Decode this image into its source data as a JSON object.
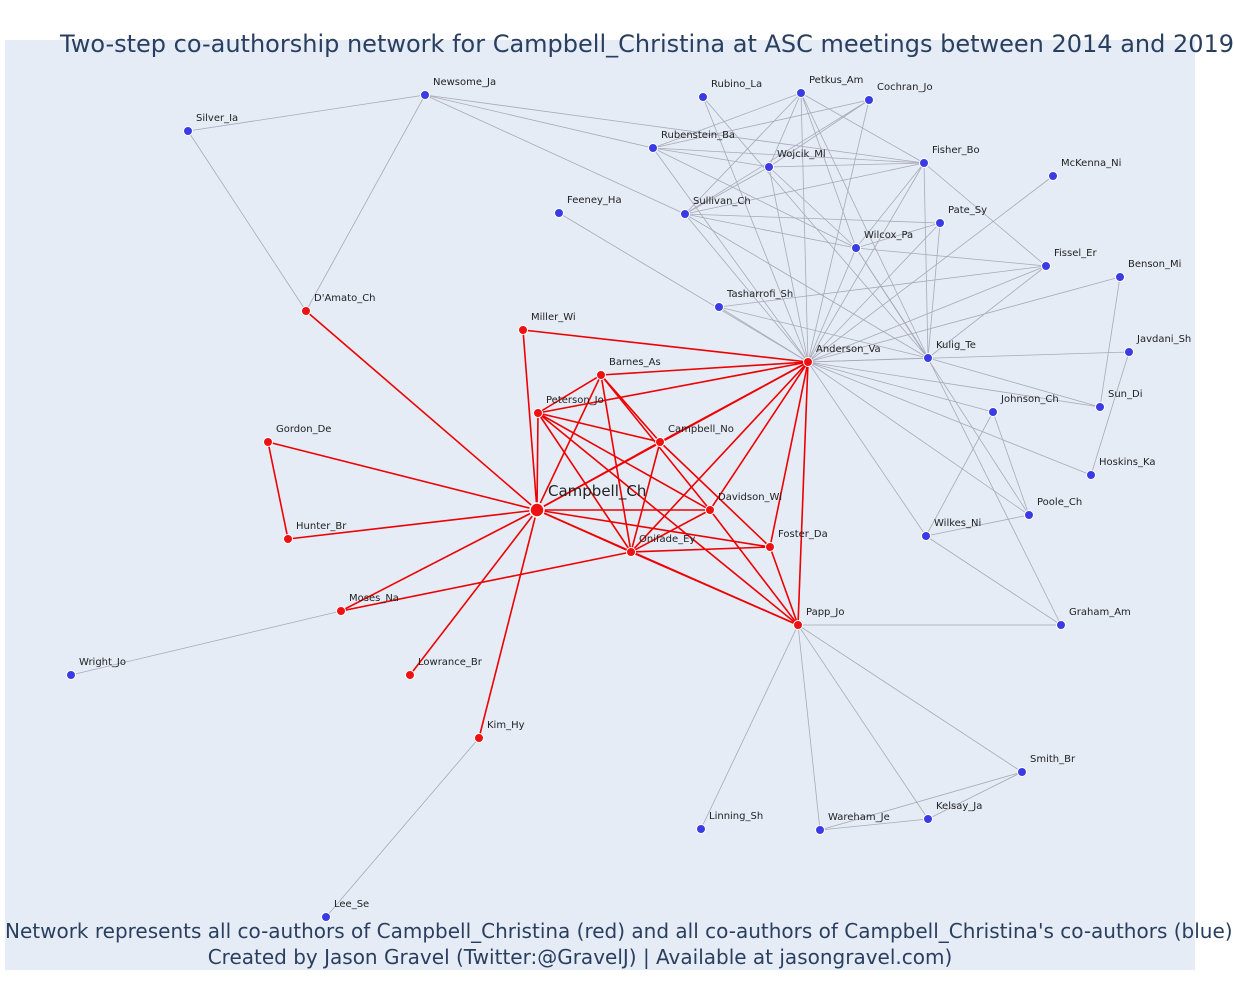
{
  "title": "Two-step co-authorship network for Campbell_Christina at ASC meetings between 2014 and 2019",
  "caption_line1": "Network represents all co-authors of Campbell_Christina (red) and all co-authors of Campbell_Christina's co-authors (blue)",
  "caption_line2": "Created by Jason Gravel (Twitter:@GravelJ) | Available at jasongravel.com)",
  "colors": {
    "background": "#e5ecf6",
    "first_step": "#ee1111",
    "second_step": "#3b3be6",
    "red_edge": "#ee0000",
    "grey_edge": "#a9a9b8"
  },
  "nodes": [
    {
      "id": "Campbell_Ch",
      "group": "focal"
    },
    {
      "id": "Peterson_Jo",
      "group": "red"
    },
    {
      "id": "Barnes_As",
      "group": "red"
    },
    {
      "id": "Campbell_No",
      "group": "red"
    },
    {
      "id": "Davidson_Wi",
      "group": "red"
    },
    {
      "id": "Onifade_Ey",
      "group": "red"
    },
    {
      "id": "Foster_Da",
      "group": "red"
    },
    {
      "id": "Papp_Jo",
      "group": "red"
    },
    {
      "id": "Anderson_Va",
      "group": "red"
    },
    {
      "id": "Miller_Wi",
      "group": "red"
    },
    {
      "id": "D'Amato_Ch",
      "group": "red"
    },
    {
      "id": "Gordon_De",
      "group": "red"
    },
    {
      "id": "Hunter_Br",
      "group": "red"
    },
    {
      "id": "Moses_Na",
      "group": "red"
    },
    {
      "id": "Lowrance_Br",
      "group": "red"
    },
    {
      "id": "Kim_Hy",
      "group": "red"
    },
    {
      "id": "Newsome_Ja",
      "group": "blue"
    },
    {
      "id": "Silver_Ia",
      "group": "blue"
    },
    {
      "id": "Rubino_La",
      "group": "blue"
    },
    {
      "id": "Petkus_Am",
      "group": "blue"
    },
    {
      "id": "Cochran_Jo",
      "group": "blue"
    },
    {
      "id": "Rubenstein_Ba",
      "group": "blue"
    },
    {
      "id": "Wojcik_Ml",
      "group": "blue"
    },
    {
      "id": "Fisher_Bo",
      "group": "blue"
    },
    {
      "id": "McKenna_Ni",
      "group": "blue"
    },
    {
      "id": "Feeney_Ha",
      "group": "blue"
    },
    {
      "id": "Sullivan_Ch",
      "group": "blue"
    },
    {
      "id": "Pate_Sy",
      "group": "blue"
    },
    {
      "id": "Wilcox_Pa",
      "group": "blue"
    },
    {
      "id": "Fissel_Er",
      "group": "blue"
    },
    {
      "id": "Benson_Mi",
      "group": "blue"
    },
    {
      "id": "Tasharrofi_Sh",
      "group": "blue"
    },
    {
      "id": "Javdani_Sh",
      "group": "blue"
    },
    {
      "id": "Kulig_Te",
      "group": "blue"
    },
    {
      "id": "Sun_Di",
      "group": "blue"
    },
    {
      "id": "Johnson_Ch",
      "group": "blue"
    },
    {
      "id": "Hoskins_Ka",
      "group": "blue"
    },
    {
      "id": "Poole_Ch",
      "group": "blue"
    },
    {
      "id": "Wilkes_Ni",
      "group": "blue"
    },
    {
      "id": "Graham_Am",
      "group": "blue"
    },
    {
      "id": "Wright_Jo",
      "group": "blue"
    },
    {
      "id": "Smith_Br",
      "group": "blue"
    },
    {
      "id": "Kelsay_Ja",
      "group": "blue"
    },
    {
      "id": "Wareham_Je",
      "group": "blue"
    },
    {
      "id": "Linning_Sh",
      "group": "blue"
    },
    {
      "id": "Lee_Se",
      "group": "blue"
    }
  ],
  "red_edges": [
    [
      "Campbell_Ch",
      "Peterson_Jo"
    ],
    [
      "Campbell_Ch",
      "Barnes_As"
    ],
    [
      "Campbell_Ch",
      "Campbell_No"
    ],
    [
      "Campbell_Ch",
      "Davidson_Wi"
    ],
    [
      "Campbell_Ch",
      "Onifade_Ey"
    ],
    [
      "Campbell_Ch",
      "Foster_Da"
    ],
    [
      "Campbell_Ch",
      "Papp_Jo"
    ],
    [
      "Campbell_Ch",
      "Anderson_Va"
    ],
    [
      "Campbell_Ch",
      "Miller_Wi"
    ],
    [
      "Campbell_Ch",
      "D'Amato_Ch"
    ],
    [
      "Campbell_Ch",
      "Gordon_De"
    ],
    [
      "Campbell_Ch",
      "Hunter_Br"
    ],
    [
      "Campbell_Ch",
      "Moses_Na"
    ],
    [
      "Campbell_Ch",
      "Lowrance_Br"
    ],
    [
      "Campbell_Ch",
      "Kim_Hy"
    ],
    [
      "Gordon_De",
      "Hunter_Br"
    ],
    [
      "Miller_Wi",
      "Anderson_Va"
    ],
    [
      "Barnes_As",
      "Peterson_Jo"
    ],
    [
      "Barnes_As",
      "Anderson_Va"
    ],
    [
      "Barnes_As",
      "Campbell_No"
    ],
    [
      "Barnes_As",
      "Davidson_Wi"
    ],
    [
      "Barnes_As",
      "Onifade_Ey"
    ],
    [
      "Peterson_Jo",
      "Anderson_Va"
    ],
    [
      "Peterson_Jo",
      "Campbell_No"
    ],
    [
      "Peterson_Jo",
      "Davidson_Wi"
    ],
    [
      "Peterson_Jo",
      "Onifade_Ey"
    ],
    [
      "Peterson_Jo",
      "Papp_Jo"
    ],
    [
      "Campbell_No",
      "Anderson_Va"
    ],
    [
      "Campbell_No",
      "Onifade_Ey"
    ],
    [
      "Campbell_No",
      "Foster_Da"
    ],
    [
      "Davidson_Wi",
      "Anderson_Va"
    ],
    [
      "Davidson_Wi",
      "Onifade_Ey"
    ],
    [
      "Davidson_Wi",
      "Papp_Jo"
    ],
    [
      "Onifade_Ey",
      "Anderson_Va"
    ],
    [
      "Onifade_Ey",
      "Foster_Da"
    ],
    [
      "Onifade_Ey",
      "Papp_Jo"
    ],
    [
      "Onifade_Ey",
      "Moses_Na"
    ],
    [
      "Foster_Da",
      "Anderson_Va"
    ],
    [
      "Foster_Da",
      "Papp_Jo"
    ],
    [
      "Papp_Jo",
      "Anderson_Va"
    ]
  ],
  "grey_edges": [
    [
      "D'Amato_Ch",
      "Newsome_Ja"
    ],
    [
      "D'Amato_Ch",
      "Silver_Ia"
    ],
    [
      "Silver_Ia",
      "Newsome_Ja"
    ],
    [
      "Newsome_Ja",
      "Rubenstein_Ba"
    ],
    [
      "Newsome_Ja",
      "Sullivan_Ch"
    ],
    [
      "Newsome_Ja",
      "Fisher_Bo"
    ],
    [
      "Moses_Na",
      "Wright_Jo"
    ],
    [
      "Kim_Hy",
      "Lee_Se"
    ],
    [
      "Feeney_Ha",
      "Anderson_Va"
    ],
    [
      "Tasharrofi_Sh",
      "Anderson_Va"
    ],
    [
      "Tasharrofi_Sh",
      "Kulig_Te"
    ],
    [
      "Anderson_Va",
      "Rubino_La"
    ],
    [
      "Anderson_Va",
      "Petkus_Am"
    ],
    [
      "Anderson_Va",
      "Cochran_Jo"
    ],
    [
      "Anderson_Va",
      "Rubenstein_Ba"
    ],
    [
      "Anderson_Va",
      "Wojcik_Ml"
    ],
    [
      "Anderson_Va",
      "Fisher_Bo"
    ],
    [
      "Anderson_Va",
      "Sullivan_Ch"
    ],
    [
      "Anderson_Va",
      "Pate_Sy"
    ],
    [
      "Anderson_Va",
      "Wilcox_Pa"
    ],
    [
      "Anderson_Va",
      "Fissel_Er"
    ],
    [
      "Anderson_Va",
      "Benson_Mi"
    ],
    [
      "Anderson_Va",
      "McKenna_Ni"
    ],
    [
      "Anderson_Va",
      "Kulig_Te"
    ],
    [
      "Anderson_Va",
      "Javdani_Sh"
    ],
    [
      "Anderson_Va",
      "Sun_Di"
    ],
    [
      "Anderson_Va",
      "Johnson_Ch"
    ],
    [
      "Anderson_Va",
      "Hoskins_Ka"
    ],
    [
      "Anderson_Va",
      "Poole_Ch"
    ],
    [
      "Anderson_Va",
      "Wilkes_Ni"
    ],
    [
      "Petkus_Am",
      "Rubenstein_Ba"
    ],
    [
      "Petkus_Am",
      "Wojcik_Ml"
    ],
    [
      "Petkus_Am",
      "Fisher_Bo"
    ],
    [
      "Petkus_Am",
      "Sullivan_Ch"
    ],
    [
      "Petkus_Am",
      "Wilcox_Pa"
    ],
    [
      "Petkus_Am",
      "Kulig_Te"
    ],
    [
      "Cochran_Jo",
      "Rubenstein_Ba"
    ],
    [
      "Cochran_Jo",
      "Wojcik_Ml"
    ],
    [
      "Cochran_Jo",
      "Sullivan_Ch"
    ],
    [
      "Rubino_La",
      "Kulig_Te"
    ],
    [
      "Rubenstein_Ba",
      "Wojcik_Ml"
    ],
    [
      "Rubenstein_Ba",
      "Fisher_Bo"
    ],
    [
      "Rubenstein_Ba",
      "Wilcox_Pa"
    ],
    [
      "Wojcik_Ml",
      "Fisher_Bo"
    ],
    [
      "Wojcik_Ml",
      "Wilcox_Pa"
    ],
    [
      "Wojcik_Ml",
      "Sullivan_Ch"
    ],
    [
      "Fisher_Bo",
      "Wilcox_Pa"
    ],
    [
      "Fisher_Bo",
      "Kulig_Te"
    ],
    [
      "Fisher_Bo",
      "Fissel_Er"
    ],
    [
      "Fisher_Bo",
      "Sullivan_Ch"
    ],
    [
      "Sullivan_Ch",
      "Pate_Sy"
    ],
    [
      "Sullivan_Ch",
      "Wilcox_Pa"
    ],
    [
      "Sullivan_Ch",
      "Kulig_Te"
    ],
    [
      "Wilcox_Pa",
      "Fissel_Er"
    ],
    [
      "Wilcox_Pa",
      "Kulig_Te"
    ],
    [
      "Wilcox_Pa",
      "Pate_Sy"
    ],
    [
      "Wilcox_Pa",
      "Poole_Ch"
    ],
    [
      "Pate_Sy",
      "Kulig_Te"
    ],
    [
      "Fissel_Er",
      "Kulig_Te"
    ],
    [
      "Fissel_Er",
      "Tasharrofi_Sh"
    ],
    [
      "Benson_Mi",
      "Sun_Di"
    ],
    [
      "Javdani_Sh",
      "Hoskins_Ka"
    ],
    [
      "Kulig_Te",
      "Sun_Di"
    ],
    [
      "Kulig_Te",
      "Graham_Am"
    ],
    [
      "Johnson_Ch",
      "Wilkes_Ni"
    ],
    [
      "Johnson_Ch",
      "Poole_Ch"
    ],
    [
      "Wilkes_Ni",
      "Poole_Ch"
    ],
    [
      "Wilkes_Ni",
      "Graham_Am"
    ],
    [
      "Papp_Jo",
      "Graham_Am"
    ],
    [
      "Papp_Jo",
      "Smith_Br"
    ],
    [
      "Papp_Jo",
      "Kelsay_Ja"
    ],
    [
      "Papp_Jo",
      "Wareham_Je"
    ],
    [
      "Papp_Jo",
      "Linning_Sh"
    ],
    [
      "Smith_Br",
      "Kelsay_Ja"
    ],
    [
      "Smith_Br",
      "Wareham_Je"
    ],
    [
      "Kelsay_Ja",
      "Wareham_Je"
    ]
  ]
}
